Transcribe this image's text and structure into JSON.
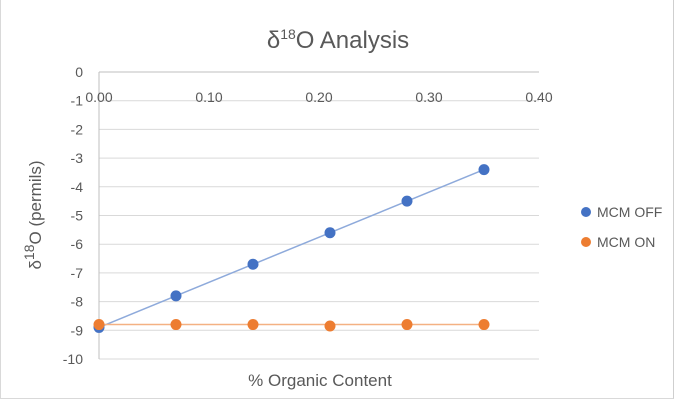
{
  "chart_data": {
    "type": "scatter",
    "title": {
      "prefix": "δ",
      "sup": "18",
      "suffix": "O Analysis"
    },
    "xlabel": "% Organic Content",
    "ylabel": {
      "prefix": "δ",
      "sup": "18",
      "suffix": "O (permils)"
    },
    "xlim": [
      0,
      0.4
    ],
    "ylim": [
      -10,
      0
    ],
    "x_ticks": [
      "0.00",
      "0.10",
      "0.20",
      "0.30",
      "0.40"
    ],
    "x_tick_values": [
      0,
      0.1,
      0.2,
      0.3,
      0.4
    ],
    "y_ticks": [
      "0",
      "-1",
      "-2",
      "-3",
      "-4",
      "-5",
      "-6",
      "-7",
      "-8",
      "-9",
      "-10"
    ],
    "y_tick_values": [
      0,
      -1,
      -2,
      -3,
      -4,
      -5,
      -6,
      -7,
      -8,
      -9,
      -10
    ],
    "grid": "horizontal",
    "x_axis_position": "top",
    "legend_position": "right",
    "series": [
      {
        "name": "MCM OFF",
        "color": "#4472c4",
        "trendline_color": "#8eaadb",
        "x": [
          0.0,
          0.07,
          0.14,
          0.21,
          0.28,
          0.35
        ],
        "y": [
          -8.9,
          -7.8,
          -6.7,
          -5.6,
          -4.5,
          -3.4
        ],
        "trendline": {
          "x": [
            0.0,
            0.35
          ],
          "y": [
            -8.9,
            -3.4
          ]
        }
      },
      {
        "name": "MCM ON",
        "color": "#ed7d31",
        "trendline_color": "#f4b183",
        "x": [
          0.0,
          0.07,
          0.14,
          0.21,
          0.28,
          0.35
        ],
        "y": [
          -8.8,
          -8.8,
          -8.8,
          -8.85,
          -8.8,
          -8.8
        ],
        "trendline": {
          "x": [
            0.0,
            0.35
          ],
          "y": [
            -8.8,
            -8.8
          ]
        }
      }
    ]
  }
}
